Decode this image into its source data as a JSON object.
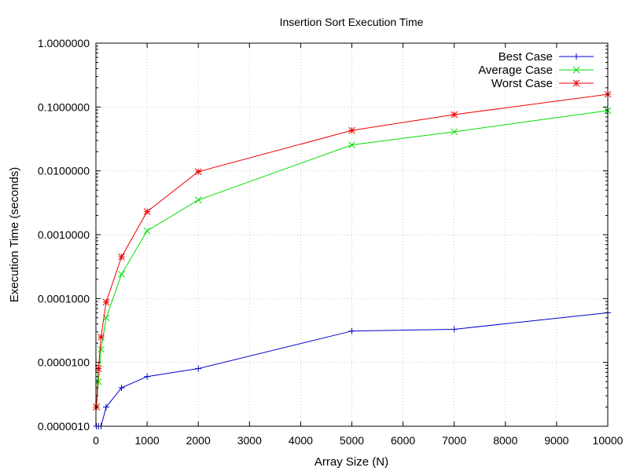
{
  "chart_data": {
    "type": "line",
    "title": "Insertion Sort Execution Time",
    "xlabel": "Array Size (N)",
    "ylabel": "Execution Time (seconds)",
    "xlim": [
      0,
      10000
    ],
    "ylim": [
      1e-06,
      1.0
    ],
    "yscale": "log",
    "grid": true,
    "legend_position": "top-right",
    "x_ticks": [
      0,
      1000,
      2000,
      3000,
      4000,
      5000,
      6000,
      7000,
      8000,
      9000,
      10000
    ],
    "x_tick_labels": [
      "0",
      "1000",
      "2000",
      "3000",
      "4000",
      "5000",
      "6000",
      "7000",
      "8000",
      "9000",
      "10000"
    ],
    "y_ticks": [
      1e-06,
      1e-05,
      0.0001,
      0.001,
      0.01,
      0.1,
      1.0
    ],
    "y_tick_labels": [
      "0.0000010",
      "0.0000100",
      "0.0001000",
      "0.0010000",
      "0.0100000",
      "0.1000000",
      "1.0000000"
    ],
    "x": [
      10,
      50,
      100,
      200,
      500,
      1000,
      2000,
      5000,
      7000,
      10000
    ],
    "series": [
      {
        "name": "Best Case",
        "color": "#0000cc",
        "marker": "plus",
        "values": [
          1e-06,
          1e-06,
          1e-06,
          2e-06,
          4e-06,
          6e-06,
          8e-06,
          3.1e-05,
          3.3e-05,
          6e-05
        ]
      },
      {
        "name": "Average Case",
        "color": "#00dd00",
        "marker": "cross",
        "values": [
          2e-06,
          5e-06,
          1.6e-05,
          5e-05,
          0.00024,
          0.00115,
          0.0035,
          0.0255,
          0.041,
          0.088
        ]
      },
      {
        "name": "Worst Case",
        "color": "#ee0000",
        "marker": "star",
        "values": [
          2e-06,
          8e-06,
          2.5e-05,
          8.8e-05,
          0.00045,
          0.0023,
          0.0097,
          0.043,
          0.076,
          0.158
        ]
      }
    ]
  }
}
